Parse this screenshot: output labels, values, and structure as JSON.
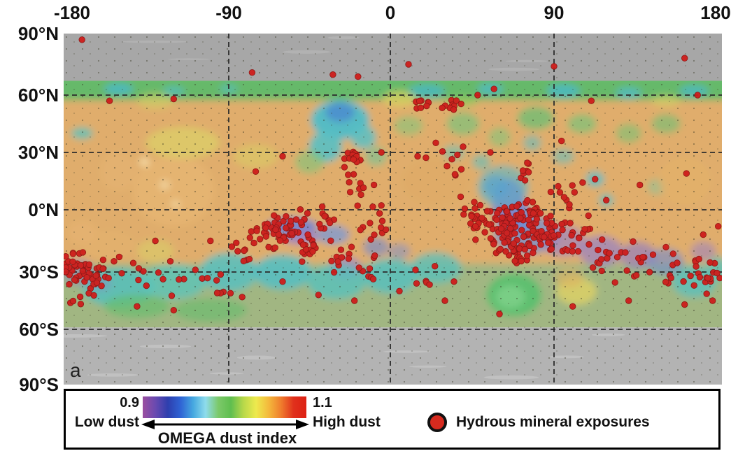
{
  "figure": {
    "panel_label": "a"
  },
  "axes": {
    "top": {
      "ticks": [
        {
          "label": "-180",
          "lon": -180
        },
        {
          "label": "-90",
          "lon": -90
        },
        {
          "label": "0",
          "lon": 0
        },
        {
          "label": "90",
          "lon": 90
        },
        {
          "label": "180",
          "lon": 180
        }
      ]
    },
    "left": {
      "ticks": [
        {
          "label": "90°N",
          "lat": 90
        },
        {
          "label": "60°N",
          "lat": 60
        },
        {
          "label": "30°N",
          "lat": 30
        },
        {
          "label": "0°N",
          "lat": 0
        },
        {
          "label": "30°S",
          "lat": -30
        },
        {
          "label": "60°S",
          "lat": -60
        },
        {
          "label": "90°S",
          "lat": -90
        }
      ]
    }
  },
  "legend": {
    "colorbar_min": "0.9",
    "colorbar_max": "1.1",
    "low_label": "Low dust",
    "high_label": "High dust",
    "title": "OMEGA dust index",
    "marker_label": "Hydrous mineral exposures",
    "marker_color": "#d62a1e",
    "marker_outline": "#111111",
    "colorbar_stops": [
      "#9b4fa0",
      "#6a4ab0",
      "#2e3fae",
      "#2f63d4",
      "#46a8e0",
      "#8fdcec",
      "#7cc96a",
      "#5fbe4f",
      "#b8d84a",
      "#eeea4e",
      "#f4b93c",
      "#ef7c2d",
      "#e0301c",
      "#dd2114"
    ]
  },
  "map": {
    "colors": {
      "polar_gray_north": "#a7a7a7",
      "polar_gray_south": "#b3b3b3",
      "base_tan": "#e0ad6c",
      "north_band_green": "#5fb96a",
      "south_green_wash": "#62c098",
      "grid": "#2b2b2b",
      "speckle": "#33331f"
    },
    "dust_band_lat": {
      "north": 67,
      "south": -59
    },
    "grid_lons": [
      -90,
      0,
      90
    ],
    "grid_lats": [
      60,
      30,
      0,
      -30,
      -60
    ],
    "regions": [
      [
        -150,
        63,
        8,
        3,
        "#49b8c4",
        0.85
      ],
      [
        -120,
        62,
        6,
        2.5,
        "#52bcc2",
        0.7
      ],
      [
        -90,
        63,
        5,
        2.5,
        "#55bec4",
        0.6
      ],
      [
        20,
        62,
        10,
        3.5,
        "#49b8c4",
        0.8
      ],
      [
        55,
        63,
        7,
        3,
        "#4fbac4",
        0.8
      ],
      [
        95,
        62,
        9,
        3.5,
        "#49b8c4",
        0.85
      ],
      [
        130,
        61,
        7,
        3,
        "#50bcc4",
        0.8
      ],
      [
        165,
        62,
        8,
        3,
        "#4bb9c4",
        0.8
      ],
      [
        5,
        58,
        9,
        4,
        "#d8d060",
        0.8
      ],
      [
        -130,
        57,
        10,
        4,
        "#cfd066",
        0.6
      ],
      [
        150,
        57,
        8,
        3,
        "#d4d266",
        0.6
      ],
      [
        40,
        57,
        8,
        3,
        "#8cc95e",
        0.7
      ],
      [
        -28,
        47,
        16,
        10,
        "#4fbcc8",
        0.95
      ],
      [
        -28,
        51,
        8,
        5,
        "#4a86d0",
        0.75
      ],
      [
        -36,
        33,
        9,
        8,
        "#59c0c4",
        0.9
      ],
      [
        -15,
        38,
        7,
        6,
        "#59c0c4",
        0.85
      ],
      [
        -45,
        25,
        8,
        6,
        "#7cc47a",
        0.6
      ],
      [
        -8,
        28,
        6,
        5,
        "#6fc49a",
        0.6
      ],
      [
        -120,
        10,
        22,
        18,
        "#e6b572",
        0.9
      ],
      [
        -115,
        35,
        20,
        8,
        "#dcd268",
        0.7
      ],
      [
        -75,
        28,
        12,
        6,
        "#d8d066",
        0.55
      ],
      [
        -136,
        25,
        3,
        2.5,
        "#f2d6a0",
        0.95
      ],
      [
        -125,
        13,
        3,
        2.5,
        "#f0d29c",
        0.9
      ],
      [
        -119,
        3,
        2.6,
        2.2,
        "#eed098",
        0.9
      ],
      [
        -170,
        40,
        6,
        3,
        "#58c0bc",
        0.8
      ],
      [
        -150,
        20,
        10,
        10,
        "#e4b170",
        0.8
      ],
      [
        -55,
        -8,
        14,
        4.5,
        "#6d84d2",
        0.9
      ],
      [
        -50,
        -13,
        10,
        4,
        "#9a80c6",
        0.85
      ],
      [
        -32,
        -12,
        9,
        5,
        "#7a9ad8",
        0.75
      ],
      [
        -25,
        -28,
        9,
        6,
        "#9a82c8",
        0.7
      ],
      [
        -8,
        -18,
        7,
        5,
        "#6d88d2",
        0.6
      ],
      [
        5,
        -20,
        6,
        4,
        "#7490d4",
        0.5
      ],
      [
        -150,
        -38,
        20,
        10,
        "#55c0bc",
        0.85
      ],
      [
        -120,
        -35,
        18,
        9,
        "#5cc4b8",
        0.8
      ],
      [
        -90,
        -30,
        16,
        10,
        "#58c0c0",
        0.85
      ],
      [
        -60,
        -30,
        16,
        9,
        "#54bec4",
        0.85
      ],
      [
        -30,
        -35,
        16,
        9,
        "#58c2bc",
        0.8
      ],
      [
        0,
        -32,
        15,
        9,
        "#54c0c0",
        0.8
      ],
      [
        25,
        -28,
        14,
        8,
        "#56c0bc",
        0.75
      ],
      [
        -172,
        -30,
        9,
        7,
        "#8f7ec4",
        0.5
      ],
      [
        -160,
        -36,
        6,
        4,
        "#9180c6",
        0.4
      ],
      [
        -140,
        -48,
        18,
        6,
        "#66be6e",
        0.7
      ],
      [
        -100,
        -50,
        20,
        6,
        "#63bc6a",
        0.6
      ],
      [
        -155,
        -17,
        14,
        7,
        "#e2b06e",
        0.9
      ],
      [
        -170,
        -11,
        8,
        6,
        "#e4b270",
        0.85
      ],
      [
        -130,
        -20,
        10,
        6,
        "#d8cf6a",
        0.6
      ],
      [
        65,
        3,
        9,
        13,
        "#8a78c4",
        0.9
      ],
      [
        58,
        12,
        7,
        6,
        "#5f85d2",
        0.75
      ],
      [
        62,
        12,
        14,
        11,
        "#54b8cc",
        0.6
      ],
      [
        72,
        -4,
        6,
        8,
        "#7387d0",
        0.8
      ],
      [
        75,
        -12,
        18,
        10,
        "#6f8ad4",
        0.7
      ],
      [
        95,
        -15,
        12,
        8,
        "#9a82c8",
        0.65
      ],
      [
        115,
        -20,
        12,
        8,
        "#9580c8",
        0.7
      ],
      [
        135,
        -22,
        10,
        7,
        "#8f7cc4",
        0.65
      ],
      [
        150,
        -25,
        10,
        7,
        "#6f8ad0",
        0.6
      ],
      [
        170,
        -20,
        7,
        5,
        "#9780c6",
        0.55
      ],
      [
        68,
        -42,
        15,
        11,
        "#5cc06e",
        0.95
      ],
      [
        66,
        -43,
        8,
        6,
        "#7ed08a",
        0.85
      ],
      [
        102,
        -40,
        11,
        7,
        "#dcd066",
        0.85
      ],
      [
        98,
        -33,
        8,
        5,
        "#e0b060",
        0.6
      ],
      [
        165,
        -35,
        12,
        8,
        "#56c0c0",
        0.75
      ],
      [
        178,
        -28,
        6,
        6,
        "#58c2bc",
        0.7
      ],
      [
        112,
        16,
        5,
        4,
        "#54bcc8",
        0.8
      ],
      [
        118,
        5,
        4,
        3.5,
        "#58bec6",
        0.7
      ],
      [
        145,
        12,
        5,
        4,
        "#7cc8a0",
        0.5
      ],
      [
        80,
        48,
        10,
        6,
        "#6abf74",
        0.75
      ],
      [
        105,
        45,
        8,
        5,
        "#72c47a",
        0.65
      ],
      [
        130,
        40,
        7,
        5,
        "#6fc276",
        0.55
      ],
      [
        40,
        45,
        9,
        6,
        "#74c57c",
        0.65
      ],
      [
        60,
        38,
        6,
        5,
        "#78c67e",
        0.55
      ],
      [
        150,
        45,
        8,
        5,
        "#6cc074",
        0.6
      ],
      [
        10,
        44,
        8,
        5,
        "#7cc87e",
        0.55
      ],
      [
        35,
        30,
        6,
        4,
        "#60c2c0",
        0.55
      ],
      [
        50,
        25,
        5,
        4,
        "#5cc0c2",
        0.6
      ],
      [
        95,
        28,
        6,
        4,
        "#5ac0c4",
        0.55
      ],
      [
        78,
        35,
        5,
        4,
        "#58bec6",
        0.55
      ],
      [
        25,
        15,
        18,
        12,
        "#dfab66",
        0.75
      ],
      [
        160,
        15,
        14,
        12,
        "#e2b06c",
        0.8
      ]
    ],
    "dots": {
      "color": "#ce1d1b",
      "outline": "#8c1210",
      "radius": 4.3,
      "clusters": [
        [
          -172,
          -28,
          38,
          6,
          7
        ],
        [
          -162,
          -35,
          14,
          4,
          5
        ],
        [
          -150,
          -27,
          6,
          5,
          4
        ],
        [
          -136,
          -29,
          5,
          7,
          5
        ],
        [
          -116,
          -33,
          6,
          9,
          6
        ],
        [
          -98,
          -36,
          5,
          5,
          4
        ],
        [
          -85,
          -22,
          8,
          7,
          6
        ],
        [
          -70,
          -12,
          14,
          5,
          4
        ],
        [
          -58,
          -9,
          40,
          8,
          5
        ],
        [
          -47,
          -17,
          16,
          5,
          5
        ],
        [
          -38,
          -5,
          10,
          4,
          4
        ],
        [
          -28,
          -22,
          11,
          6,
          5
        ],
        [
          -21,
          27,
          15,
          3,
          3
        ],
        [
          -17,
          11,
          10,
          5,
          8
        ],
        [
          -8,
          -8,
          12,
          6,
          6
        ],
        [
          -12,
          -30,
          8,
          5,
          5
        ],
        [
          18,
          56,
          8,
          5,
          2
        ],
        [
          33,
          55,
          9,
          4,
          2
        ],
        [
          30,
          20,
          8,
          8,
          8
        ],
        [
          45,
          -2,
          14,
          5,
          5
        ],
        [
          57,
          -8,
          30,
          6,
          6
        ],
        [
          68,
          -10,
          46,
          7,
          7
        ],
        [
          79,
          -6,
          40,
          6,
          6
        ],
        [
          88,
          -11,
          30,
          6,
          6
        ],
        [
          70,
          -21,
          24,
          8,
          4
        ],
        [
          97,
          8,
          10,
          6,
          4
        ],
        [
          75,
          20,
          8,
          3,
          3
        ],
        [
          105,
          -13,
          14,
          6,
          6
        ],
        [
          118,
          -21,
          12,
          6,
          6
        ],
        [
          133,
          -26,
          10,
          6,
          6
        ],
        [
          150,
          -29,
          9,
          6,
          6
        ],
        [
          164,
          -31,
          10,
          5,
          6
        ],
        [
          176,
          -30,
          10,
          3,
          7
        ],
        [
          -90,
          -42,
          4,
          5,
          4
        ],
        [
          20,
          -32,
          6,
          6,
          5
        ],
        [
          -175,
          -45,
          4,
          4,
          3
        ]
      ],
      "singles": [
        [
          -170,
          87
        ],
        [
          10,
          75
        ],
        [
          90,
          74
        ],
        [
          160,
          78
        ],
        [
          -77,
          71
        ],
        [
          -32,
          70
        ],
        [
          -18,
          69
        ],
        [
          -155,
          57
        ],
        [
          -120,
          58
        ],
        [
          48,
          60
        ],
        [
          57,
          63
        ],
        [
          110,
          57
        ],
        [
          167,
          60
        ],
        [
          94,
          36
        ],
        [
          161,
          19
        ],
        [
          136,
          13
        ],
        [
          118,
          5
        ],
        [
          112,
          16
        ],
        [
          -140,
          -48
        ],
        [
          -120,
          -50
        ],
        [
          -60,
          -35
        ],
        [
          -40,
          -42
        ],
        [
          -20,
          -45
        ],
        [
          5,
          -40
        ],
        [
          30,
          -45
        ],
        [
          60,
          -52
        ],
        [
          100,
          -48
        ],
        [
          130,
          -45
        ],
        [
          160,
          -47
        ],
        [
          175,
          -45
        ],
        [
          -85,
          -20
        ],
        [
          35,
          -35
        ],
        [
          150,
          -18
        ],
        [
          170,
          -12
        ],
        [
          178,
          -8
        ],
        [
          -100,
          -15
        ],
        [
          -130,
          -15
        ],
        [
          25,
          35
        ],
        [
          15,
          28
        ],
        [
          40,
          33
        ],
        [
          -5,
          30
        ],
        [
          55,
          30
        ],
        [
          -60,
          28
        ],
        [
          -75,
          20
        ]
      ]
    }
  }
}
